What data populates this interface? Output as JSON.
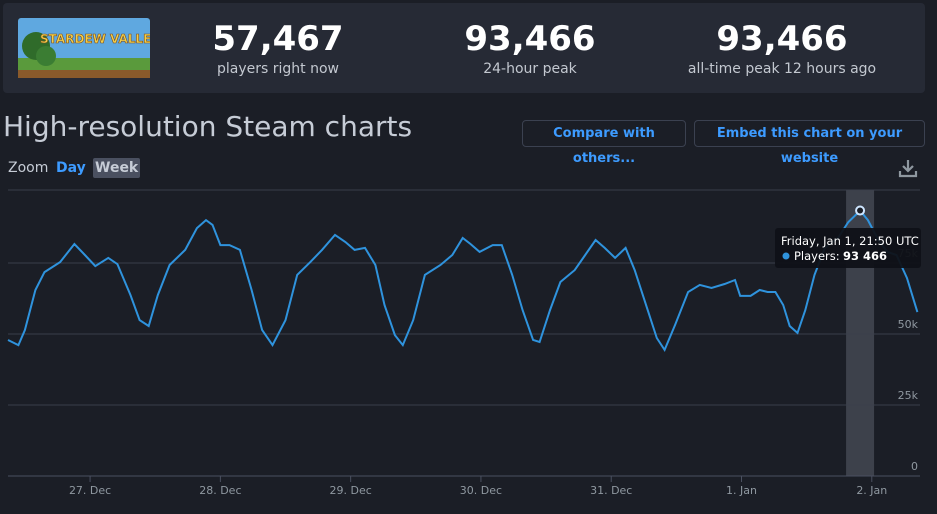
{
  "header": {
    "game_logo_text": "STARDEW VALLEY",
    "stats": [
      {
        "value": "57,467",
        "label": "players right now"
      },
      {
        "value": "93,466",
        "label": "24-hour peak"
      },
      {
        "value": "93,466",
        "label": "all-time peak 12 hours ago"
      }
    ]
  },
  "page_title": "High-resolution Steam charts",
  "buttons": [
    "Compare with others...",
    "Embed this chart on your website"
  ],
  "zoom": {
    "label": "Zoom",
    "options": [
      "Day",
      "Week"
    ]
  },
  "chart_data": {
    "type": "line",
    "x": [
      26.37,
      26.45,
      26.5,
      26.58,
      26.65,
      26.77,
      26.88,
      26.96,
      27.04,
      27.14,
      27.21,
      27.31,
      27.38,
      27.45,
      27.52,
      27.61,
      27.73,
      27.82,
      27.89,
      27.94,
      28.0,
      28.07,
      28.15,
      28.24,
      28.32,
      28.4,
      28.5,
      28.59,
      28.69,
      28.78,
      28.88,
      28.96,
      29.03,
      29.11,
      29.19,
      29.26,
      29.34,
      29.4,
      29.48,
      29.57,
      29.69,
      29.78,
      29.86,
      29.92,
      29.99,
      30.09,
      30.16,
      30.24,
      30.32,
      30.4,
      30.45,
      30.53,
      30.61,
      30.72,
      30.8,
      30.88,
      30.95,
      31.03,
      31.11,
      31.18,
      31.28,
      31.35,
      31.41,
      31.49,
      31.59,
      31.68,
      31.77,
      31.87,
      31.95,
      31.99,
      32.07,
      32.14,
      32.2,
      32.26,
      32.32,
      32.37,
      32.43,
      32.49,
      32.56,
      32.64,
      32.74,
      32.82,
      32.91,
      32.97,
      33.05,
      33.12,
      33.19,
      33.27,
      33.35
    ],
    "series": [
      {
        "color": "#2f93dd",
        "values": [
          47900,
          46100,
          51400,
          65500,
          71800,
          75300,
          81700,
          77800,
          73900,
          76800,
          74600,
          63700,
          54900,
          52800,
          63700,
          74300,
          79600,
          87300,
          90100,
          88400,
          81300,
          81300,
          79600,
          65500,
          51400,
          46100,
          54900,
          70800,
          75300,
          79600,
          84900,
          82400,
          79600,
          80300,
          74300,
          60200,
          49600,
          46100,
          54900,
          70800,
          74300,
          77800,
          83800,
          81700,
          78900,
          81300,
          81300,
          70800,
          58400,
          47900,
          47200,
          58400,
          68300,
          72500,
          77800,
          83100,
          80300,
          76800,
          80300,
          72500,
          58400,
          48600,
          44400,
          53200,
          64800,
          67300,
          66200,
          67600,
          69000,
          63400,
          63400,
          65500,
          64800,
          64800,
          60200,
          52800,
          50400,
          58400,
          70800,
          80300,
          83800,
          89400,
          93466,
          90100,
          83100,
          78900,
          77800,
          69700,
          57700
        ]
      }
    ],
    "xlim": [
      26.37,
      33.37
    ],
    "xticks": [
      {
        "value": 27,
        "label": "27. Dec"
      },
      {
        "value": 28,
        "label": "28. Dec"
      },
      {
        "value": 29,
        "label": "29. Dec"
      },
      {
        "value": 30,
        "label": "30. Dec"
      },
      {
        "value": 31,
        "label": "31. Dec"
      },
      {
        "value": 32,
        "label": "1. Jan"
      },
      {
        "value": 33,
        "label": "2. Jan"
      }
    ],
    "ylim": [
      0,
      100000
    ],
    "yticks": [
      0,
      {
        "value": 25000,
        "label": "25k"
      },
      {
        "value": 50000,
        "label": "50k"
      },
      {
        "value": 75000,
        "label": "75k"
      }
    ],
    "grid": true,
    "tooltip": {
      "title": "Friday, Jan 1, 21:50 UTC",
      "label": "Players:",
      "value": "93 466"
    }
  }
}
